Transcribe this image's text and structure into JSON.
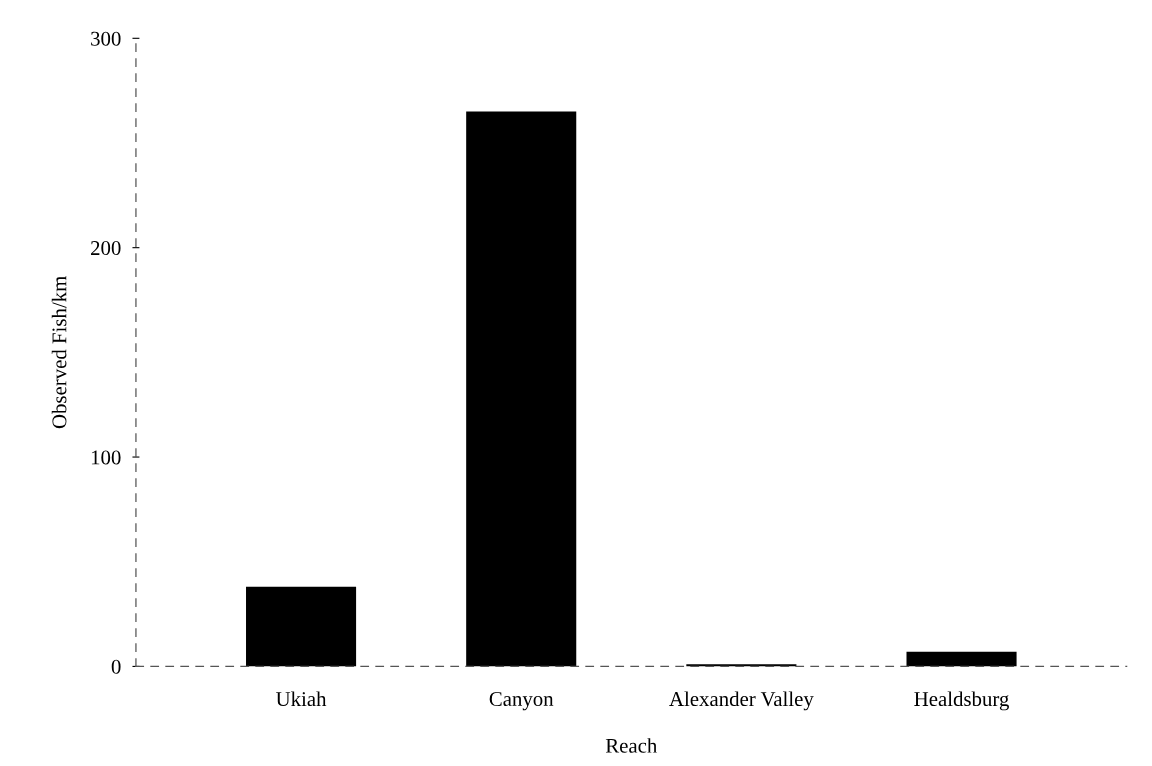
{
  "chart_data": {
    "type": "bar",
    "xlabel": "Reach",
    "ylabel": "Observed Fish/km",
    "categories": [
      "Ukiah",
      "Canyon",
      "Alexander Valley",
      "Healdsburg"
    ],
    "values": [
      38,
      265,
      1,
      7
    ],
    "color": "#000000",
    "ylim": [
      0,
      300
    ],
    "yticks": [
      0,
      100,
      200,
      300
    ],
    "grid": false,
    "legend": false
  }
}
